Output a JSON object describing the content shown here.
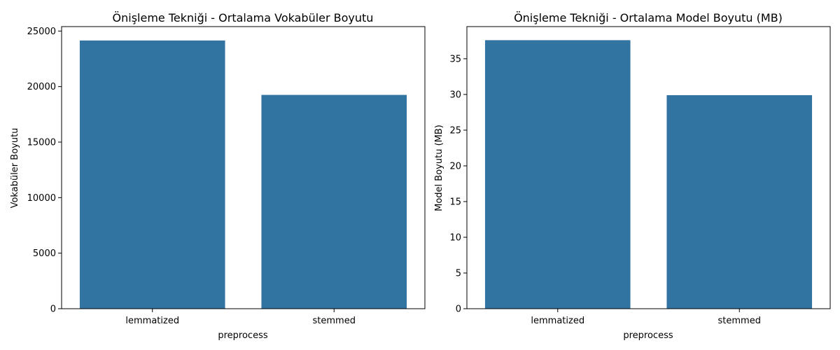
{
  "chart_data": [
    {
      "type": "bar",
      "title": "Önişleme Tekniği - Ortalama Vokabüler Boyutu",
      "xlabel": "preprocess",
      "ylabel": "Vokabüler Boyutu",
      "categories": [
        "lemmatized",
        "stemmed"
      ],
      "values": [
        24150,
        19250
      ],
      "ylim": [
        0,
        25400
      ],
      "yticks": [
        0,
        5000,
        10000,
        15000,
        20000,
        25000
      ],
      "grid": false,
      "color": "#3274a1"
    },
    {
      "type": "bar",
      "title": "Önişleme Tekniği - Ortalama Model Boyutu (MB)",
      "xlabel": "preprocess",
      "ylabel": "Model Boyutu (MB)",
      "categories": [
        "lemmatized",
        "stemmed"
      ],
      "values": [
        37.6,
        29.9
      ],
      "ylim": [
        0,
        39.5
      ],
      "yticks": [
        0,
        5,
        10,
        15,
        20,
        25,
        30,
        35
      ],
      "grid": false,
      "color": "#3274a1"
    }
  ]
}
